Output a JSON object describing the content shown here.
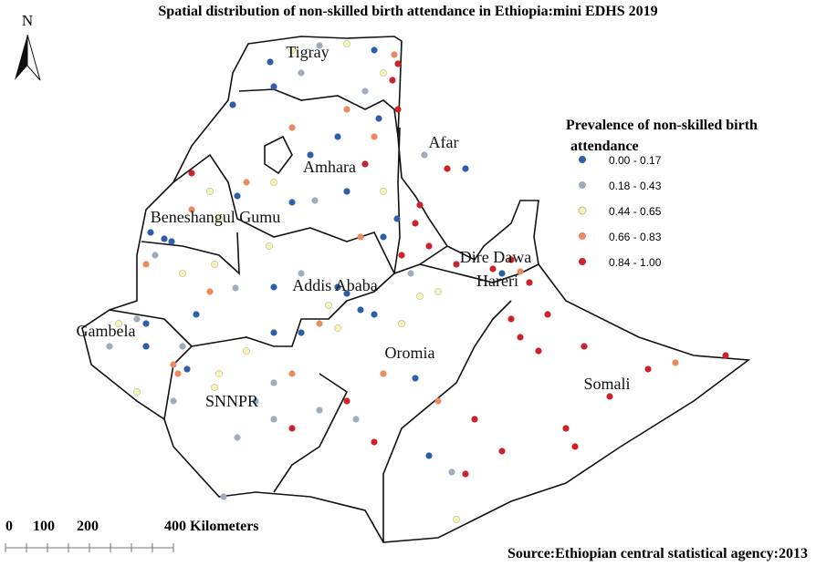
{
  "title": "Spatial distribution of non-skilled birth attendance in Ethiopia:mini EDHS 2019",
  "north": "N",
  "regions": [
    "Tigray",
    "Afar",
    "Amhara",
    "Beneshangul Gumu",
    "Addis Ababa",
    "Dire Dawa",
    "Hareri",
    "Gambela",
    "Oromia",
    "SNNPR",
    "Somali"
  ],
  "legend": {
    "title": [
      "Prevalence of non-skilled birth",
      "attendance"
    ],
    "items": [
      {
        "label": "0.00 - 0.17",
        "color": "#2f5fa8"
      },
      {
        "label": "0.18 - 0.43",
        "color": "#9eacbc"
      },
      {
        "label": "0.44 - 0.65",
        "color": "#f6f3bb"
      },
      {
        "label": "0.66 - 0.83",
        "color": "#e98a60"
      },
      {
        "label": "0.84 - 1.00",
        "color": "#c9232c"
      }
    ]
  },
  "scale": [
    "0",
    "100",
    "200",
    "400 Kilometers"
  ],
  "source": "Source:Ethiopian central statistical agency:2013"
}
